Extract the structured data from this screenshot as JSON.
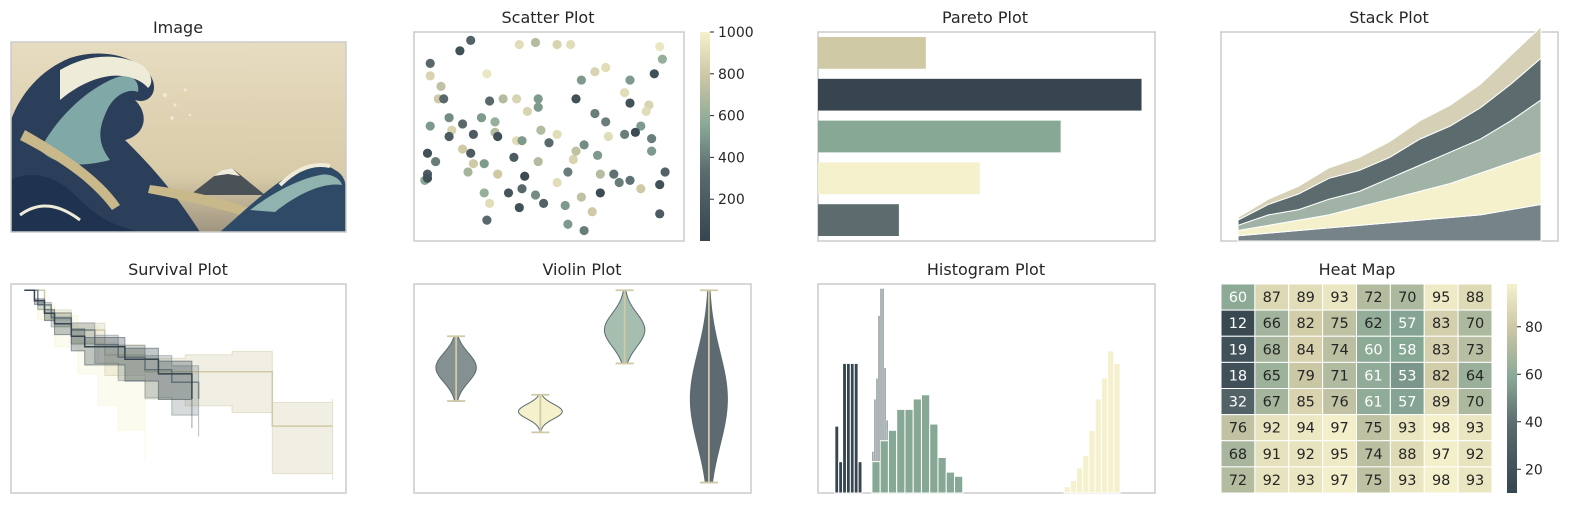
{
  "palette": {
    "dark": "#36454F",
    "slate": "#5B6B6E",
    "sage": "#88A896",
    "cream": "#F4F1CC",
    "tan": "#CFC9A6",
    "grid_line": "#ffffff",
    "frame": "#cccccc"
  },
  "panels": {
    "image": {
      "title": "Image",
      "subject": "The Great Wave woodblock print"
    },
    "scatter": {
      "title": "Scatter Plot"
    },
    "pareto": {
      "title": "Pareto Plot"
    },
    "stack": {
      "title": "Stack Plot"
    },
    "survival": {
      "title": "Survival Plot"
    },
    "violin": {
      "title": "Violin Plot"
    },
    "histogram": {
      "title": "Histogram Plot"
    },
    "heatmap": {
      "title": "Heat Map"
    }
  },
  "chart_data": [
    {
      "type": "scatter",
      "title": "Scatter Plot",
      "xlim": [
        0,
        1
      ],
      "ylim": [
        0,
        1
      ],
      "colorbar": {
        "min": 0,
        "max": 1000,
        "ticks": [
          "200",
          "400",
          "600",
          "800",
          "1000"
        ]
      },
      "points": [
        [
          0.06,
          0.85,
          300
        ],
        [
          0.17,
          0.91,
          100
        ],
        [
          0.21,
          0.96,
          250
        ],
        [
          0.27,
          0.8,
          950
        ],
        [
          0.39,
          0.94,
          900
        ],
        [
          0.45,
          0.95,
          700
        ],
        [
          0.53,
          0.94,
          850
        ],
        [
          0.58,
          0.94,
          900
        ],
        [
          0.91,
          0.93,
          950
        ],
        [
          0.06,
          0.79,
          850
        ],
        [
          0.1,
          0.74,
          750
        ],
        [
          0.28,
          0.67,
          300
        ],
        [
          0.62,
          0.77,
          500
        ],
        [
          0.67,
          0.81,
          850
        ],
        [
          0.71,
          0.83,
          900
        ],
        [
          0.8,
          0.77,
          500
        ],
        [
          0.92,
          0.87,
          600
        ],
        [
          0.89,
          0.8,
          100
        ],
        [
          0.09,
          0.68,
          800
        ],
        [
          0.11,
          0.68,
          300
        ],
        [
          0.13,
          0.59,
          450
        ],
        [
          0.25,
          0.59,
          500
        ],
        [
          0.33,
          0.68,
          700
        ],
        [
          0.38,
          0.68,
          850
        ],
        [
          0.46,
          0.68,
          500
        ],
        [
          0.6,
          0.68,
          100
        ],
        [
          0.78,
          0.71,
          900
        ],
        [
          0.8,
          0.66,
          100
        ],
        [
          0.87,
          0.65,
          850
        ],
        [
          0.06,
          0.55,
          500
        ],
        [
          0.14,
          0.53,
          850
        ],
        [
          0.18,
          0.56,
          300
        ],
        [
          0.3,
          0.57,
          600
        ],
        [
          0.42,
          0.62,
          850
        ],
        [
          0.46,
          0.64,
          500
        ],
        [
          0.67,
          0.61,
          400
        ],
        [
          0.71,
          0.57,
          400
        ],
        [
          0.84,
          0.55,
          500
        ],
        [
          0.86,
          0.62,
          900
        ],
        [
          0.13,
          0.5,
          200
        ],
        [
          0.22,
          0.51,
          200
        ],
        [
          0.3,
          0.52,
          700
        ],
        [
          0.38,
          0.48,
          900
        ],
        [
          0.47,
          0.53,
          700
        ],
        [
          0.53,
          0.51,
          900
        ],
        [
          0.82,
          0.52,
          50
        ],
        [
          0.88,
          0.49,
          400
        ],
        [
          0.18,
          0.44,
          800
        ],
        [
          0.21,
          0.42,
          200
        ],
        [
          0.31,
          0.5,
          100
        ],
        [
          0.4,
          0.48,
          500
        ],
        [
          0.5,
          0.47,
          300
        ],
        [
          0.63,
          0.46,
          450
        ],
        [
          0.72,
          0.5,
          900
        ],
        [
          0.78,
          0.51,
          400
        ],
        [
          0.88,
          0.43,
          500
        ],
        [
          0.05,
          0.42,
          100
        ],
        [
          0.08,
          0.38,
          400
        ],
        [
          0.22,
          0.37,
          800
        ],
        [
          0.26,
          0.37,
          500
        ],
        [
          0.37,
          0.4,
          200
        ],
        [
          0.46,
          0.38,
          700
        ],
        [
          0.59,
          0.39,
          850
        ],
        [
          0.6,
          0.43,
          750
        ],
        [
          0.68,
          0.41,
          500
        ],
        [
          0.05,
          0.32,
          200
        ],
        [
          0.2,
          0.33,
          650
        ],
        [
          0.31,
          0.32,
          800
        ],
        [
          0.41,
          0.31,
          50
        ],
        [
          0.53,
          0.28,
          900
        ],
        [
          0.57,
          0.33,
          400
        ],
        [
          0.69,
          0.32,
          700
        ],
        [
          0.74,
          0.32,
          350
        ],
        [
          0.91,
          0.27,
          100
        ],
        [
          0.93,
          0.33,
          250
        ],
        [
          0.26,
          0.23,
          600
        ],
        [
          0.35,
          0.23,
          150
        ],
        [
          0.4,
          0.25,
          300
        ],
        [
          0.45,
          0.22,
          450
        ],
        [
          0.48,
          0.18,
          250
        ],
        [
          0.62,
          0.21,
          750
        ],
        [
          0.69,
          0.23,
          50
        ],
        [
          0.8,
          0.29,
          350
        ],
        [
          0.04,
          0.29,
          550
        ],
        [
          0.05,
          0.3,
          100
        ],
        [
          0.28,
          0.18,
          900
        ],
        [
          0.39,
          0.16,
          100
        ],
        [
          0.56,
          0.17,
          500
        ],
        [
          0.66,
          0.14,
          800
        ],
        [
          0.91,
          0.13,
          200
        ],
        [
          0.27,
          0.1,
          300
        ],
        [
          0.57,
          0.08,
          500
        ],
        [
          0.63,
          0.05,
          400
        ],
        [
          0.84,
          0.25,
          800
        ],
        [
          0.76,
          0.28,
          400
        ]
      ]
    },
    {
      "type": "bar",
      "orientation": "horizontal",
      "title": "Pareto Plot",
      "values": [
        40,
        120,
        90,
        60,
        30
      ],
      "colors": [
        "#CFC9A6",
        "#36454F",
        "#88A896",
        "#F4F1CC",
        "#5B6B6E"
      ],
      "xlim": [
        0,
        125
      ]
    },
    {
      "type": "area",
      "stacked": true,
      "title": "Stack Plot",
      "x": [
        0,
        1,
        2,
        3,
        4,
        5,
        6,
        7,
        8,
        9,
        10
      ],
      "series": [
        {
          "color": "#768489",
          "values": [
            1.0,
            1.5,
            2.0,
            2.5,
            3.0,
            3.5,
            4.0,
            4.5,
            5.0,
            6.0,
            7.0
          ]
        },
        {
          "color": "#F4F1CC",
          "values": [
            1.0,
            1.5,
            2.0,
            2.5,
            3.5,
            4.5,
            5.5,
            6.5,
            8.0,
            9.0,
            10.0
          ]
        },
        {
          "color": "#A1B3A7",
          "values": [
            1.0,
            2.0,
            2.0,
            3.0,
            3.0,
            4.0,
            5.0,
            6.0,
            6.5,
            8.0,
            10.0
          ]
        },
        {
          "color": "#5B6B6E",
          "values": [
            1.0,
            2.0,
            3.0,
            4.0,
            4.0,
            4.0,
            5.0,
            5.0,
            6.0,
            7.0,
            8.0
          ]
        },
        {
          "color": "#D6D1B6",
          "values": [
            0.5,
            1.0,
            1.5,
            2.0,
            2.5,
            3.0,
            3.5,
            4.0,
            4.5,
            5.5,
            6.0
          ]
        }
      ],
      "ylim": [
        0,
        40
      ]
    },
    {
      "type": "line",
      "title": "Survival Plot",
      "step": true,
      "xlim": [
        0,
        1
      ],
      "ylim": [
        0,
        1
      ],
      "series": [
        {
          "color": "#36454F",
          "x": [
            0.04,
            0.07,
            0.1,
            0.13,
            0.18,
            0.22,
            0.34,
            0.44,
            0.54
          ],
          "y": [
            0.97,
            0.92,
            0.86,
            0.81,
            0.75,
            0.7,
            0.64,
            0.57,
            0.45
          ],
          "ci_width": 0.14
        },
        {
          "color": "#768489",
          "x": [
            0.04,
            0.08,
            0.12,
            0.18,
            0.25,
            0.32,
            0.4,
            0.48,
            0.56
          ],
          "y": [
            0.97,
            0.9,
            0.84,
            0.78,
            0.71,
            0.65,
            0.59,
            0.53,
            0.45
          ],
          "ci_width": 0.18
        },
        {
          "color": "#CFC9A6",
          "x": [
            0.04,
            0.1,
            0.18,
            0.28,
            0.4,
            0.52,
            0.66,
            0.78,
            0.96
          ],
          "y": [
            0.97,
            0.86,
            0.78,
            0.66,
            0.58,
            0.58,
            0.58,
            0.32,
            0.32
          ],
          "ci_width": 0.26
        },
        {
          "color": "#F4F1CC",
          "x": [
            0.04,
            0.08,
            0.13,
            0.2,
            0.26,
            0.32,
            0.4
          ],
          "y": [
            0.97,
            0.88,
            0.8,
            0.72,
            0.62,
            0.55,
            0.45
          ],
          "ci_width": 0.3
        }
      ]
    },
    {
      "type": "violin",
      "title": "Violin Plot",
      "ylim": [
        0,
        1
      ],
      "violins": [
        {
          "color": "#5B6B6E",
          "alpha": 0.75,
          "min": 0.44,
          "max": 0.75,
          "center": 0.6,
          "halfwidth": 0.06,
          "spread": 0.07
        },
        {
          "color": "#F4F1CC",
          "alpha": 1.0,
          "min": 0.29,
          "max": 0.47,
          "center": 0.39,
          "halfwidth": 0.065,
          "spread": 0.035
        },
        {
          "color": "#88A896",
          "alpha": 0.75,
          "min": 0.62,
          "max": 0.97,
          "center": 0.78,
          "halfwidth": 0.06,
          "spread": 0.08
        },
        {
          "color": "#36454F",
          "alpha": 0.8,
          "min": 0.05,
          "max": 0.97,
          "center": 0.45,
          "halfwidth": 0.055,
          "spread": 0.22
        }
      ]
    },
    {
      "type": "bar",
      "title": "Histogram Plot",
      "xlim": [
        0,
        1
      ],
      "ylim": [
        0,
        1
      ],
      "series": [
        {
          "color": "#36454F",
          "start": 0.05,
          "width": 0.0115,
          "heights": [
            0.32,
            0.15,
            0.62,
            0.62,
            0.62,
            0.62,
            0.15
          ]
        },
        {
          "color": "#5B6B6E",
          "start": 0.16,
          "width": 0.006,
          "heights": [
            0.2,
            0.45,
            0.55,
            0.85,
            0.98,
            0.98,
            0.6,
            0.35,
            0.3
          ]
        },
        {
          "color": "#88A896",
          "start": 0.16,
          "width": 0.0245,
          "heights": [
            0.15,
            0.25,
            0.3,
            0.4,
            0.4,
            0.45,
            0.47,
            0.33,
            0.17,
            0.1,
            0.08
          ]
        },
        {
          "color": "#F4F1CC",
          "start": 0.73,
          "width": 0.0185,
          "heights": [
            0.03,
            0.06,
            0.12,
            0.18,
            0.3,
            0.45,
            0.55,
            0.68,
            0.62
          ]
        }
      ]
    },
    {
      "type": "heatmap",
      "title": "Heat Map",
      "colorbar": {
        "min": 10,
        "max": 98,
        "ticks": [
          "20",
          "40",
          "60",
          "80"
        ]
      },
      "rows": [
        [
          60,
          87,
          89,
          93,
          72,
          70,
          95,
          88
        ],
        [
          12,
          66,
          82,
          75,
          62,
          57,
          83,
          70
        ],
        [
          19,
          68,
          84,
          74,
          60,
          58,
          83,
          73
        ],
        [
          18,
          65,
          79,
          71,
          61,
          53,
          82,
          64
        ],
        [
          32,
          67,
          85,
          76,
          61,
          57,
          89,
          70
        ],
        [
          76,
          92,
          94,
          97,
          75,
          93,
          98,
          93
        ],
        [
          68,
          91,
          92,
          95,
          74,
          88,
          97,
          92
        ],
        [
          72,
          92,
          93,
          97,
          75,
          93,
          98,
          93
        ]
      ]
    }
  ]
}
